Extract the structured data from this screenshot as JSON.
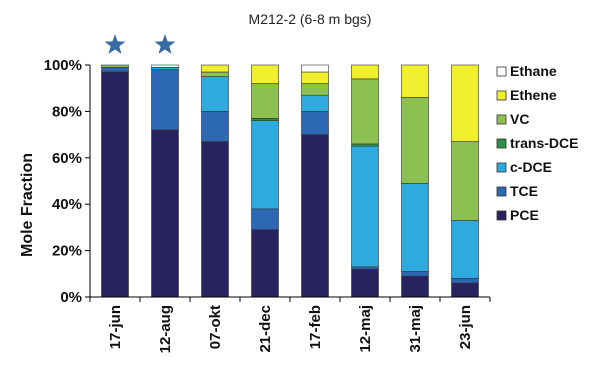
{
  "chart_data": {
    "type": "bar",
    "stacked": true,
    "percent": true,
    "title": "M212-2 (6-8 m bgs)",
    "xlabel": "",
    "ylabel": "Mole Fraction",
    "ylim": [
      0,
      100
    ],
    "yticks": [
      "0%",
      "20%",
      "40%",
      "60%",
      "80%",
      "100%"
    ],
    "categories": [
      "17-jun",
      "12-aug",
      "07-okt",
      "21-dec",
      "17-feb",
      "12-maj",
      "31-maj",
      "23-jun"
    ],
    "starred": [
      "17-jun",
      "12-aug"
    ],
    "grid": false,
    "legend_position": "right",
    "series": [
      {
        "name": "PCE",
        "color": "#27235f",
        "values": [
          97,
          72,
          67,
          29,
          70,
          12,
          9,
          6
        ]
      },
      {
        "name": "TCE",
        "color": "#2c68b3",
        "values": [
          2,
          26,
          13,
          9,
          10,
          1,
          2,
          2
        ]
      },
      {
        "name": "c-DCE",
        "color": "#2eaadf",
        "values": [
          0,
          1,
          15,
          38,
          7,
          52,
          38,
          25
        ]
      },
      {
        "name": "trans-DCE",
        "color": "#2a8f44",
        "values": [
          0,
          0,
          0,
          1,
          0,
          1,
          0,
          0
        ]
      },
      {
        "name": "VC",
        "color": "#8cc152",
        "values": [
          1,
          0,
          2,
          15,
          5,
          28,
          37,
          34
        ]
      },
      {
        "name": "Ethene",
        "color": "#f0ef2e",
        "values": [
          0,
          0,
          3,
          8,
          5,
          6,
          14,
          33
        ]
      },
      {
        "name": "Ethane",
        "color": "#ffffff",
        "values": [
          0,
          1,
          0,
          0,
          3,
          0,
          0,
          0
        ]
      }
    ],
    "legend_order": [
      "Ethane",
      "Ethene",
      "VC",
      "trans-DCE",
      "c-DCE",
      "TCE",
      "PCE"
    ],
    "star_color": "#3a6ba5"
  }
}
